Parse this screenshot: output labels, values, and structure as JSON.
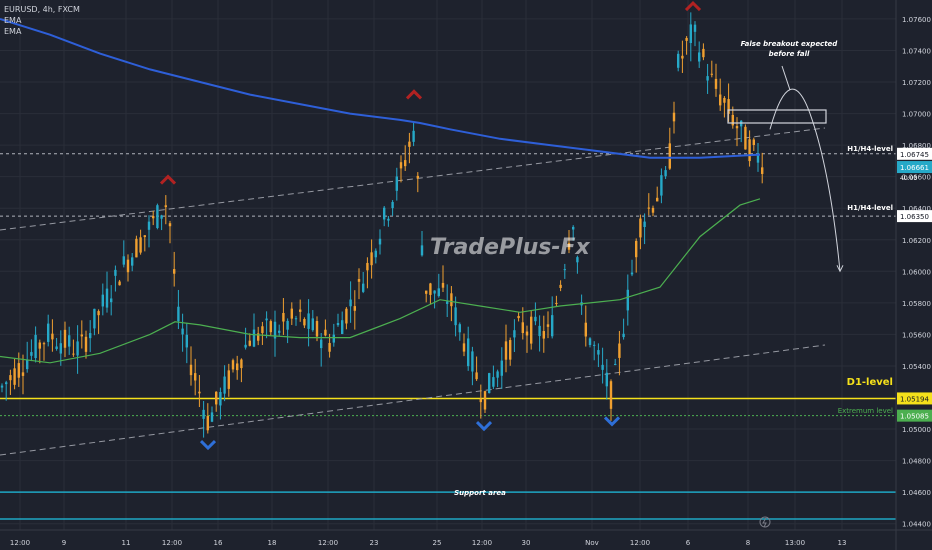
{
  "legend": {
    "symbol": "EURUSD, 4h, FXCM",
    "ema1": "EMA",
    "ema2": "EMA"
  },
  "watermark": "TradePlus-Fx",
  "annotations": {
    "forecast_note_line1": "False breakout expected",
    "forecast_note_line2": "before fall",
    "h1h4_upper": "H1/H4-level",
    "h1h4_lower": "H1/H4-level",
    "d1_level": "D1-level",
    "extremum_level": "Extremum  level",
    "support_area": "Support area"
  },
  "price_badges": {
    "h1h4_upper": "1.06745",
    "current_price": "1.06661",
    "current_timer": "40:03",
    "h1h4_lower": "1.06350",
    "d1_level": "1.05194",
    "extremum_level": "1.05085"
  },
  "colors": {
    "background": "#1e222d",
    "bull_candle": "#26a9c8",
    "bear_candle": "#f0a030",
    "ema_slow": "#2e5fd8",
    "ema_fast": "#4caf50",
    "d1_line": "#f5e11b",
    "support_line": "#1ea7c4",
    "extremum_line": "#4caf50",
    "top_marker": "#b22222",
    "bottom_marker": "#2e6fd8",
    "text": "#d1d4dc"
  },
  "icons": {
    "top_markers": "chevron-up-icon",
    "bottom_markers": "chevron-down-icon",
    "replay": "lightning-icon"
  },
  "chart_data": {
    "type": "candlestick",
    "symbol": "EURUSD",
    "timeframe": "4h",
    "source": "FXCM",
    "y_axis": {
      "range": [
        1.0436,
        1.0772
      ],
      "ticks": [
        "1.07600",
        "1.07400",
        "1.07200",
        "1.07000",
        "1.06800",
        "1.06600",
        "1.06400",
        "1.06200",
        "1.06000",
        "1.05800",
        "1.05600",
        "1.05400",
        "1.05000",
        "1.04800",
        "1.04600",
        "1.04400"
      ],
      "tick_values": [
        1.076,
        1.074,
        1.072,
        1.07,
        1.068,
        1.066,
        1.064,
        1.062,
        1.06,
        1.058,
        1.056,
        1.054,
        1.05,
        1.048,
        1.046,
        1.044
      ]
    },
    "x_axis": {
      "ticks": [
        "12:00",
        "9",
        "11",
        "12:00",
        "16",
        "18",
        "12:00",
        "23",
        "25",
        "12:00",
        "30",
        "Nov",
        "12:00",
        "6",
        "8",
        "13:00",
        "13"
      ]
    },
    "levels": [
      {
        "name": "H1/H4-level upper",
        "price": 1.06745,
        "style": "dashed"
      },
      {
        "name": "H1/H4-level lower",
        "price": 1.0635,
        "style": "dashed"
      },
      {
        "name": "D1-level",
        "price": 1.05194,
        "style": "solid"
      },
      {
        "name": "Extremum level",
        "price": 1.05085,
        "style": "dotted"
      },
      {
        "name": "Support area top",
        "price": 1.046,
        "style": "solid"
      },
      {
        "name": "Support area bottom",
        "price": 1.0443,
        "style": "solid"
      }
    ],
    "ema_slow_series": [
      [
        0,
        1.076
      ],
      [
        50,
        1.075
      ],
      [
        100,
        1.0738
      ],
      [
        150,
        1.0728
      ],
      [
        200,
        1.072
      ],
      [
        250,
        1.0712
      ],
      [
        300,
        1.0706
      ],
      [
        350,
        1.07
      ],
      [
        400,
        1.0696
      ],
      [
        420,
        1.0694
      ],
      [
        450,
        1.069
      ],
      [
        500,
        1.0684
      ],
      [
        550,
        1.068
      ],
      [
        600,
        1.0676
      ],
      [
        650,
        1.0672
      ],
      [
        700,
        1.0672
      ],
      [
        760,
        1.0674
      ]
    ],
    "ema_fast_series": [
      [
        0,
        1.0546
      ],
      [
        50,
        1.0542
      ],
      [
        100,
        1.0548
      ],
      [
        150,
        1.056
      ],
      [
        175,
        1.0568
      ],
      [
        200,
        1.0566
      ],
      [
        250,
        1.056
      ],
      [
        300,
        1.0558
      ],
      [
        350,
        1.0558
      ],
      [
        400,
        1.057
      ],
      [
        440,
        1.0582
      ],
      [
        480,
        1.0578
      ],
      [
        520,
        1.0574
      ],
      [
        560,
        1.0578
      ],
      [
        590,
        1.058
      ],
      [
        620,
        1.0582
      ],
      [
        660,
        1.059
      ],
      [
        700,
        1.0622
      ],
      [
        740,
        1.0642
      ],
      [
        760,
        1.0646
      ]
    ],
    "projection": [
      [
        770,
        1.069
      ],
      [
        790,
        1.071
      ],
      [
        810,
        1.07
      ],
      [
        825,
        1.066
      ],
      [
        840,
        1.06
      ]
    ],
    "swing_tops": [
      [
        168,
        1.0648
      ],
      [
        414,
        1.0702
      ],
      [
        693,
        1.0758
      ]
    ],
    "swing_bottoms": [
      [
        208,
        1.05
      ],
      [
        484,
        1.0512
      ],
      [
        612,
        1.0515
      ]
    ]
  }
}
